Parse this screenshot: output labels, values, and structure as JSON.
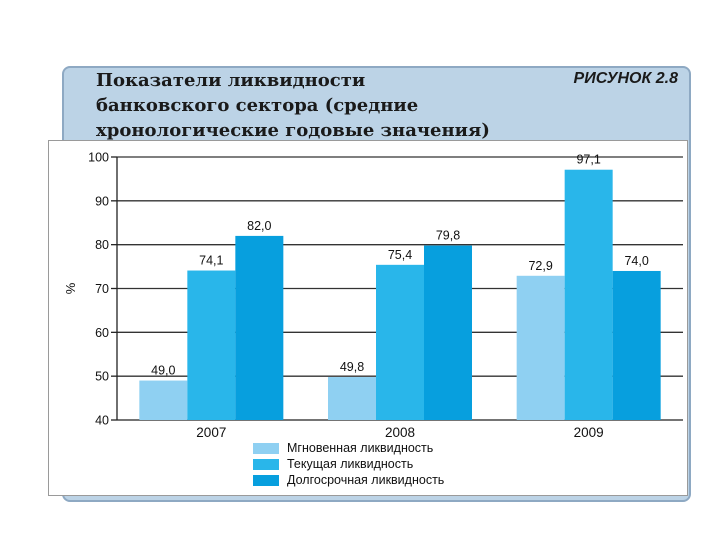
{
  "header": {
    "title_lines": [
      "Показатели ликвидности",
      "банковского сектора (средние",
      "хронологические годовые значения)"
    ],
    "figure_number": "РИСУНОК 2.8"
  },
  "chart_data": {
    "type": "bar",
    "categories": [
      "2007",
      "2008",
      "2009"
    ],
    "series": [
      {
        "name": "Мгновенная ликвидность",
        "values": [
          49.0,
          49.8,
          72.9
        ],
        "labels": [
          "49,0",
          "49,8",
          "72,9"
        ],
        "color": "#8fd0f2"
      },
      {
        "name": "Текущая ликвидность",
        "values": [
          74.1,
          75.4,
          97.1
        ],
        "labels": [
          "74,1",
          "75,4",
          "97,1"
        ],
        "color": "#29b6ea"
      },
      {
        "name": "Долгосрочная ликвидность",
        "values": [
          82.0,
          79.8,
          74.0
        ],
        "labels": [
          "82,0",
          "79,8",
          "74,0"
        ],
        "color": "#079fde"
      }
    ],
    "ylabel": "%",
    "ylim": [
      40,
      100
    ],
    "yticks": [
      "100",
      "90",
      "80",
      "70",
      "60",
      "50",
      "40"
    ],
    "ytick_values": [
      100,
      90,
      80,
      70,
      60,
      50,
      40
    ],
    "grid": true,
    "legend_position": "bottom"
  }
}
